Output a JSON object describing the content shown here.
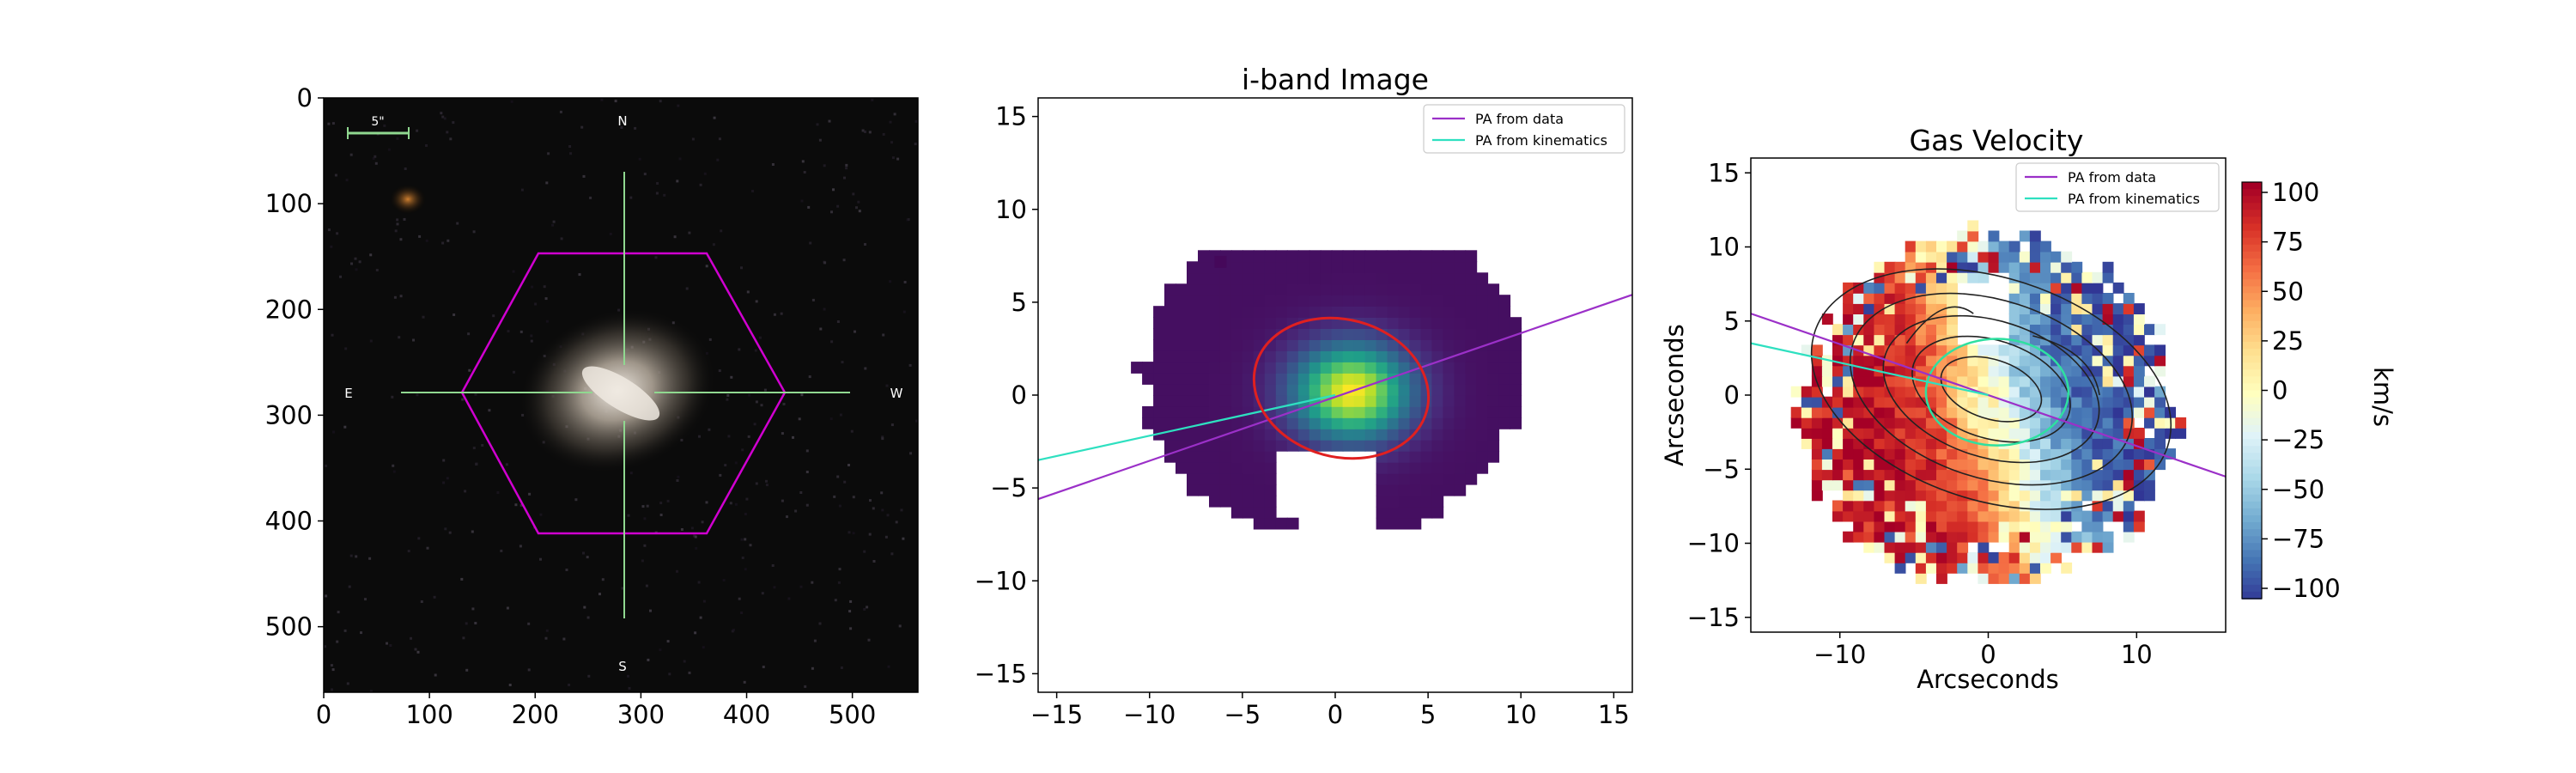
{
  "chart_data": [
    {
      "type": "image",
      "title": "",
      "xlim": [
        0,
        562
      ],
      "ylim": [
        0,
        562
      ],
      "x_ticks": [
        "0",
        "100",
        "200",
        "300",
        "400",
        "500"
      ],
      "y_ticks": [
        "0",
        "100",
        "200",
        "300",
        "400",
        "500"
      ],
      "scale_bar_label": "5\"",
      "compass": {
        "north": "N",
        "south": "S",
        "east": "E",
        "west": "W"
      },
      "hexagon_color": "#d000d0",
      "crosshair_color": "#90d890"
    },
    {
      "type": "heatmap",
      "title": "i-band Image",
      "xlim": [
        -16,
        16
      ],
      "ylim": [
        16,
        -16
      ],
      "x_ticks": [
        "−15",
        "−10",
        "−5",
        "0",
        "5",
        "10",
        "15"
      ],
      "y_ticks": [
        "−15",
        "−10",
        "−5",
        "0",
        "5",
        "10",
        "15"
      ],
      "colormap": "viridis",
      "legend": {
        "placement": "top-right",
        "entries": [
          {
            "label": "PA from data",
            "color": "#9b30c8"
          },
          {
            "label": "PA from kinematics",
            "color": "#2ee0c0"
          }
        ]
      },
      "pa_lines": [
        {
          "name": "PA from data",
          "x": [
            -16,
            16
          ],
          "y": [
            -5.6,
            5.4
          ]
        },
        {
          "name": "PA from kinematics",
          "x": [
            -16,
            0
          ],
          "y": [
            -3.5,
            0
          ]
        }
      ],
      "ellipse": {
        "center": [
          0.5,
          0.5
        ],
        "color": "#e02020"
      }
    },
    {
      "type": "heatmap",
      "title": "Gas Velocity",
      "xlabel": "Arcseconds",
      "ylabel": "Arcseconds",
      "xlim": [
        -16,
        16
      ],
      "ylim": [
        -16,
        16
      ],
      "x_ticks": [
        "−10",
        "0",
        "10"
      ],
      "y_ticks": [
        "15",
        "10",
        "5",
        "0",
        "−5",
        "−10",
        "−15"
      ],
      "colormap": "RdYlBu_r",
      "colorbar": {
        "label": "km/s",
        "range": [
          -100,
          100
        ],
        "ticks": [
          "100",
          "75",
          "50",
          "25",
          "0",
          "−25",
          "−50",
          "−75",
          "−100"
        ]
      },
      "legend": {
        "placement": "top-right",
        "entries": [
          {
            "label": "PA from data",
            "color": "#9b30c8"
          },
          {
            "label": "PA from kinematics",
            "color": "#2ee0c0"
          }
        ]
      },
      "pa_lines": [
        {
          "name": "PA from data",
          "x": [
            -16,
            16
          ],
          "y": [
            5.5,
            -5.5
          ]
        },
        {
          "name": "PA from kinematics",
          "x": [
            -16,
            0
          ],
          "y": [
            3.5,
            0
          ]
        }
      ]
    }
  ]
}
